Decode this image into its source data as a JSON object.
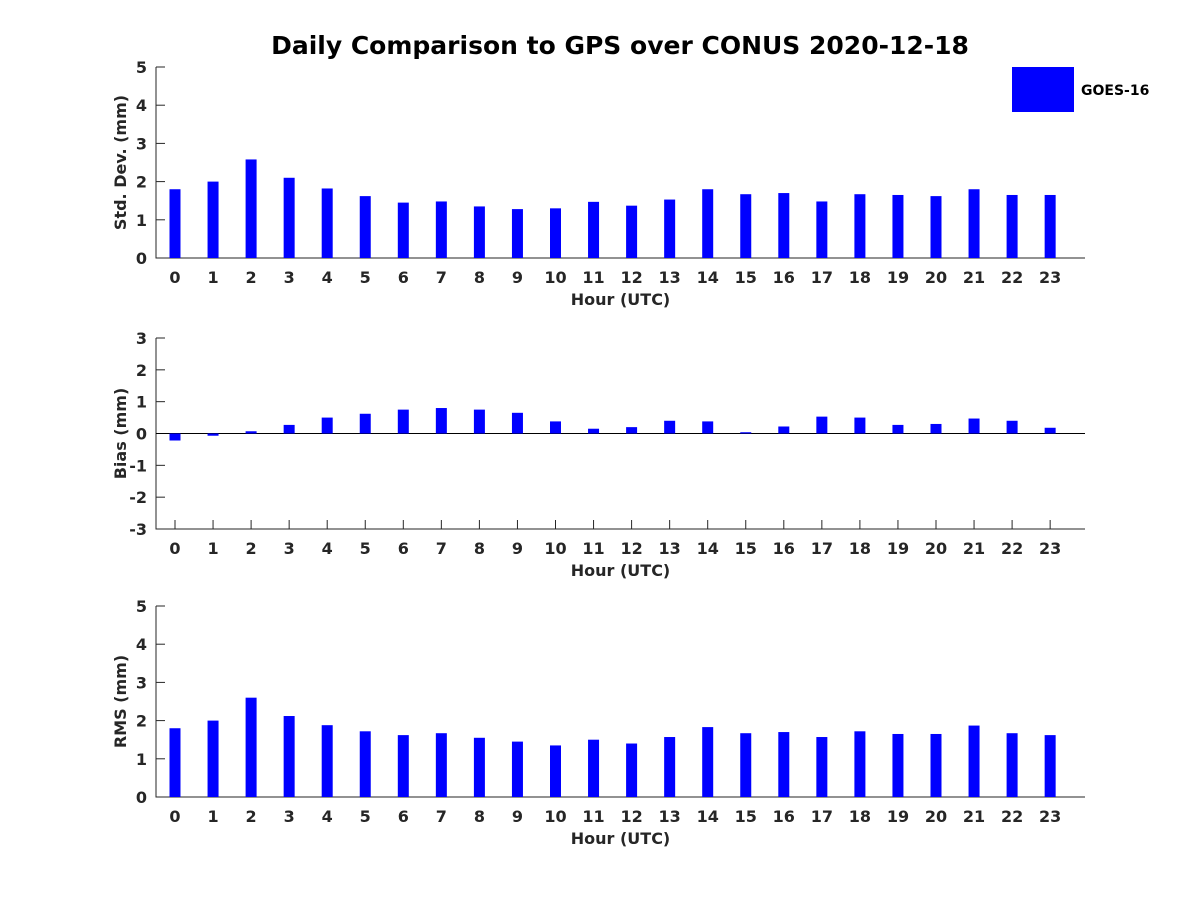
{
  "figure_title": "Daily Comparison to GPS over CONUS 2020-12-18",
  "legend": {
    "label": "GOES-16",
    "color": "#0000ff"
  },
  "chart_data": [
    {
      "type": "bar",
      "title": "Daily Comparison to GPS over CONUS 2020-12-18",
      "xlabel": "Hour (UTC)",
      "ylabel": "Std. Dev. (mm)",
      "ylim": [
        0,
        5
      ],
      "yticks": [
        "0",
        "1",
        "2",
        "3",
        "4",
        "5"
      ],
      "categories": [
        "0",
        "1",
        "2",
        "3",
        "4",
        "5",
        "6",
        "7",
        "8",
        "9",
        "10",
        "11",
        "12",
        "13",
        "14",
        "15",
        "16",
        "17",
        "18",
        "19",
        "20",
        "21",
        "22",
        "23"
      ],
      "series": [
        {
          "name": "GOES-16",
          "color": "#0000ff",
          "values": [
            1.8,
            2.0,
            2.58,
            2.1,
            1.82,
            1.62,
            1.45,
            1.48,
            1.35,
            1.28,
            1.3,
            1.47,
            1.37,
            1.53,
            1.8,
            1.67,
            1.7,
            1.48,
            1.67,
            1.65,
            1.62,
            1.8,
            1.65,
            1.65
          ]
        }
      ]
    },
    {
      "type": "bar",
      "xlabel": "Hour (UTC)",
      "ylabel": "Bias (mm)",
      "ylim": [
        -3,
        3
      ],
      "yticks": [
        "-3",
        "-2",
        "-1",
        "0",
        "1",
        "2",
        "3"
      ],
      "categories": [
        "0",
        "1",
        "2",
        "3",
        "4",
        "5",
        "6",
        "7",
        "8",
        "9",
        "10",
        "11",
        "12",
        "13",
        "14",
        "15",
        "16",
        "17",
        "18",
        "19",
        "20",
        "21",
        "22",
        "23"
      ],
      "series": [
        {
          "name": "GOES-16",
          "color": "#0000ff",
          "values": [
            -0.22,
            -0.07,
            0.07,
            0.27,
            0.5,
            0.62,
            0.75,
            0.8,
            0.75,
            0.65,
            0.38,
            0.15,
            0.2,
            0.4,
            0.38,
            0.04,
            0.22,
            0.53,
            0.5,
            0.27,
            0.3,
            0.47,
            0.4,
            0.18
          ]
        }
      ]
    },
    {
      "type": "bar",
      "xlabel": "Hour (UTC)",
      "ylabel": "RMS (mm)",
      "ylim": [
        0,
        5
      ],
      "yticks": [
        "0",
        "1",
        "2",
        "3",
        "4",
        "5"
      ],
      "categories": [
        "0",
        "1",
        "2",
        "3",
        "4",
        "5",
        "6",
        "7",
        "8",
        "9",
        "10",
        "11",
        "12",
        "13",
        "14",
        "15",
        "16",
        "17",
        "18",
        "19",
        "20",
        "21",
        "22",
        "23"
      ],
      "series": [
        {
          "name": "GOES-16",
          "color": "#0000ff",
          "values": [
            1.8,
            2.0,
            2.6,
            2.12,
            1.88,
            1.72,
            1.62,
            1.67,
            1.55,
            1.45,
            1.35,
            1.5,
            1.4,
            1.57,
            1.83,
            1.67,
            1.7,
            1.57,
            1.72,
            1.65,
            1.65,
            1.87,
            1.67,
            1.62
          ]
        }
      ]
    }
  ]
}
